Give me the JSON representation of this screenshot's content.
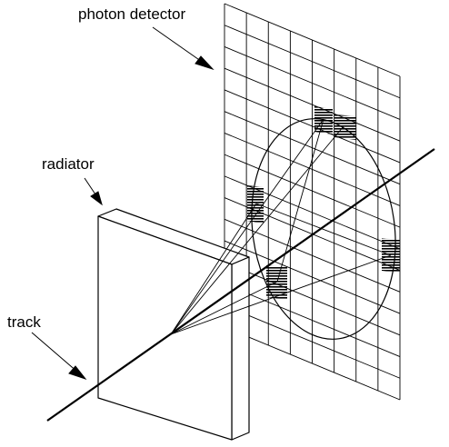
{
  "labels": {
    "photon_detector": "photon detector",
    "radiator": "radiator",
    "track": "track"
  },
  "colors": {
    "line": "#000000",
    "background": "#ffffff"
  }
}
